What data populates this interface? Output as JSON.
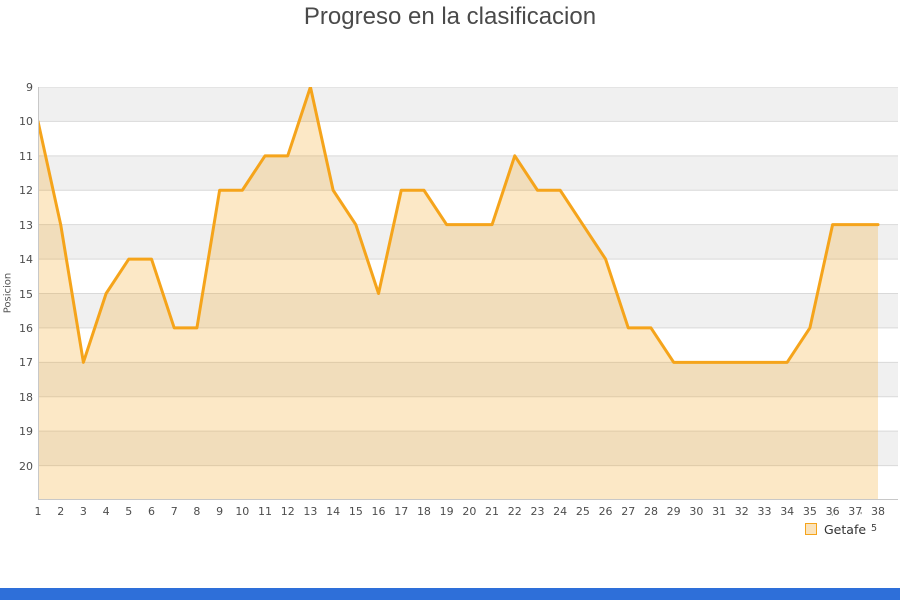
{
  "title": "Progreso en la clasificacion",
  "chart_data": {
    "type": "area",
    "title": "Progreso en la clasificacion",
    "xlabel": "",
    "ylabel": "Posicion",
    "x": [
      1,
      2,
      3,
      4,
      5,
      6,
      7,
      8,
      9,
      10,
      11,
      12,
      13,
      14,
      15,
      16,
      17,
      18,
      19,
      20,
      21,
      22,
      23,
      24,
      25,
      26,
      27,
      28,
      29,
      30,
      31,
      32,
      33,
      34,
      35,
      36,
      37,
      38
    ],
    "series": [
      {
        "name": "Getafe",
        "values": [
          10,
          13,
          17,
          15,
          14,
          14,
          16,
          16,
          12,
          12,
          11,
          11,
          9,
          12,
          13,
          15,
          12,
          12,
          13,
          13,
          13,
          11,
          12,
          12,
          13,
          14,
          16,
          16,
          17,
          17,
          17,
          17,
          17,
          17,
          16,
          13,
          13,
          13
        ]
      }
    ],
    "y_ticks": [
      9,
      10,
      11,
      12,
      13,
      14,
      15,
      16,
      17,
      18,
      19,
      20
    ],
    "ylim": [
      9,
      21
    ],
    "y_inverted": true,
    "grid": true,
    "legend_position": "bottom-right",
    "colors": {
      "line": "#f5a41b",
      "area_fill": "rgba(245,164,27,0.25)",
      "band_gray": "#f0f0f0",
      "band_white": "#ffffff",
      "gridline": "#d9d9d9",
      "axis_border": "#c8c8c8",
      "title_text": "#4a4a4a",
      "tick_text": "#4d4d4d"
    }
  },
  "legend": {
    "label": "Getafe",
    "swatch_fill": "#fae3bc",
    "swatch_border": "#f5a41b",
    "tiny_mark_1": "·",
    "tiny_mark_2": "'",
    "stray_superscript": "5"
  },
  "footer": {
    "bar_color": "#2e6fd9"
  }
}
